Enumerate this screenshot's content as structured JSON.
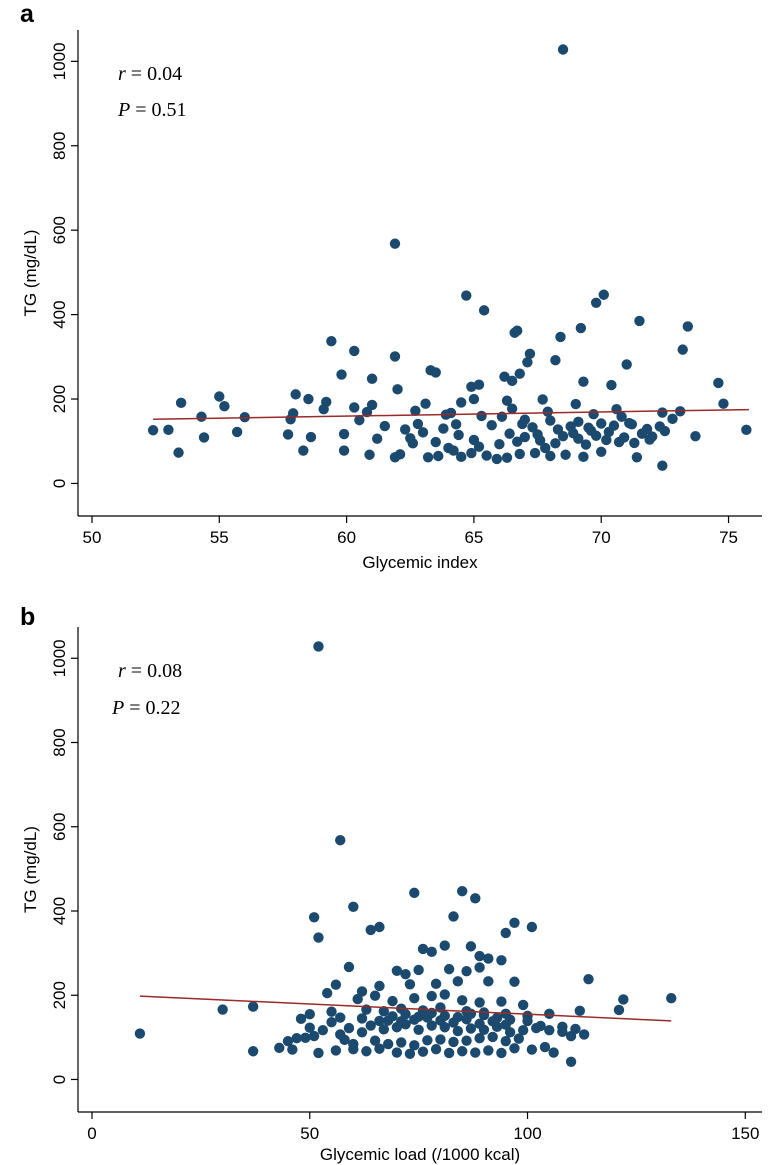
{
  "chart_data": [
    {
      "type": "scatter",
      "panel_label": "a",
      "xlabel": "Glycemic index",
      "ylabel": "TG (mg/dL)",
      "xlim": [
        50,
        76
      ],
      "ylim": [
        -25,
        1060
      ],
      "x_ticks": [
        50,
        55,
        60,
        65,
        70,
        75
      ],
      "y_ticks": [
        0,
        200,
        400,
        600,
        800,
        1000
      ],
      "annotations": {
        "r_symbol": "r",
        "r_value": " = 0.04",
        "p_symbol": "P",
        "p_value": " = 0.51"
      },
      "fit_line": {
        "x": [
          52.4,
          75.8
        ],
        "y": [
          152,
          175
        ]
      },
      "marker_color": "#1b4a6e",
      "fit_color": "#9b2a2a",
      "points": [
        [
          68.5,
          1028
        ],
        [
          61.9,
          568
        ],
        [
          64.7,
          445
        ],
        [
          65.4,
          410
        ],
        [
          70.1,
          447
        ],
        [
          69.8,
          428
        ],
        [
          71.5,
          385
        ],
        [
          73.4,
          372
        ],
        [
          69.2,
          368
        ],
        [
          66.7,
          362
        ],
        [
          66.6,
          357
        ],
        [
          68.4,
          347
        ],
        [
          59.4,
          337
        ],
        [
          60.3,
          314
        ],
        [
          73.2,
          317
        ],
        [
          67.2,
          307
        ],
        [
          61.9,
          301
        ],
        [
          68.2,
          292
        ],
        [
          67.1,
          287
        ],
        [
          71.0,
          282
        ],
        [
          63.3,
          268
        ],
        [
          63.5,
          263
        ],
        [
          66.8,
          260
        ],
        [
          59.8,
          258
        ],
        [
          66.2,
          253
        ],
        [
          61.0,
          248
        ],
        [
          66.5,
          243
        ],
        [
          74.6,
          238
        ],
        [
          69.3,
          241
        ],
        [
          65.2,
          234
        ],
        [
          64.9,
          229
        ],
        [
          70.4,
          233
        ],
        [
          62.0,
          223
        ],
        [
          55.0,
          206
        ],
        [
          58.0,
          211
        ],
        [
          59.2,
          193
        ],
        [
          53.5,
          191
        ],
        [
          58.5,
          200
        ],
        [
          60.3,
          180
        ],
        [
          61.0,
          186
        ],
        [
          63.1,
          189
        ],
        [
          64.5,
          192
        ],
        [
          65.0,
          200
        ],
        [
          66.3,
          196
        ],
        [
          67.7,
          199
        ],
        [
          69.0,
          188
        ],
        [
          70.6,
          176
        ],
        [
          72.4,
          168
        ],
        [
          73.1,
          171
        ],
        [
          74.8,
          189
        ],
        [
          55.2,
          183
        ],
        [
          54.3,
          158
        ],
        [
          56.0,
          157
        ],
        [
          57.9,
          166
        ],
        [
          59.1,
          176
        ],
        [
          60.8,
          169
        ],
        [
          62.7,
          172
        ],
        [
          63.9,
          163
        ],
        [
          65.3,
          160
        ],
        [
          66.1,
          158
        ],
        [
          67.0,
          151
        ],
        [
          68.0,
          149
        ],
        [
          69.1,
          146
        ],
        [
          70.0,
          142
        ],
        [
          71.2,
          140
        ],
        [
          72.8,
          153
        ],
        [
          52.4,
          126
        ],
        [
          53.0,
          127
        ],
        [
          54.4,
          109
        ],
        [
          55.7,
          122
        ],
        [
          57.7,
          116
        ],
        [
          58.6,
          110
        ],
        [
          59.9,
          117
        ],
        [
          61.2,
          106
        ],
        [
          62.5,
          107
        ],
        [
          63.0,
          121
        ],
        [
          64.4,
          115
        ],
        [
          65.0,
          103
        ],
        [
          66.4,
          118
        ],
        [
          67.5,
          116
        ],
        [
          68.9,
          119
        ],
        [
          69.6,
          125
        ],
        [
          70.3,
          122
        ],
        [
          71.6,
          118
        ],
        [
          72.5,
          124
        ],
        [
          73.7,
          112
        ],
        [
          75.7,
          127
        ],
        [
          53.4,
          73
        ],
        [
          58.3,
          78
        ],
        [
          59.9,
          78
        ],
        [
          60.9,
          68
        ],
        [
          62.1,
          69
        ],
        [
          63.2,
          62
        ],
        [
          63.6,
          65
        ],
        [
          64.2,
          78
        ],
        [
          64.9,
          72
        ],
        [
          65.5,
          66
        ],
        [
          66.3,
          61
        ],
        [
          66.8,
          70
        ],
        [
          67.4,
          72
        ],
        [
          68.0,
          65
        ],
        [
          68.6,
          68
        ],
        [
          69.3,
          63
        ],
        [
          70.0,
          75
        ],
        [
          71.4,
          62
        ],
        [
          72.4,
          42
        ],
        [
          61.9,
          62
        ],
        [
          64.5,
          63
        ],
        [
          65.9,
          58
        ],
        [
          67.8,
          84
        ],
        [
          68.2,
          95
        ],
        [
          69.4,
          92
        ],
        [
          70.7,
          98
        ],
        [
          71.9,
          104
        ],
        [
          62.6,
          95
        ],
        [
          63.5,
          98
        ],
        [
          64.0,
          84
        ],
        [
          65.2,
          87
        ],
        [
          66.0,
          93
        ],
        [
          66.7,
          99
        ],
        [
          67.0,
          110
        ],
        [
          67.6,
          102
        ],
        [
          68.5,
          112
        ],
        [
          69.1,
          106
        ],
        [
          69.8,
          113
        ],
        [
          70.2,
          103
        ],
        [
          70.9,
          109
        ],
        [
          71.3,
          96
        ],
        [
          72.0,
          111
        ],
        [
          63.8,
          130
        ],
        [
          64.3,
          140
        ],
        [
          65.7,
          138
        ],
        [
          66.9,
          141
        ],
        [
          67.3,
          133
        ],
        [
          68.3,
          128
        ],
        [
          68.8,
          135
        ],
        [
          69.5,
          132
        ],
        [
          70.5,
          137
        ],
        [
          71.1,
          143
        ],
        [
          71.8,
          129
        ],
        [
          72.3,
          135
        ],
        [
          62.8,
          141
        ],
        [
          60.5,
          150
        ],
        [
          61.5,
          136
        ],
        [
          62.3,
          128
        ],
        [
          57.8,
          152
        ],
        [
          66.5,
          177
        ],
        [
          67.9,
          170
        ],
        [
          69.7,
          164
        ],
        [
          70.8,
          158
        ],
        [
          64.1,
          167
        ]
      ]
    },
    {
      "type": "scatter",
      "panel_label": "b",
      "xlabel": "Glycemic load (/1000 kcal)",
      "ylabel": "TG (mg/dL)",
      "xlim": [
        0,
        152
      ],
      "ylim": [
        -25,
        1060
      ],
      "x_ticks": [
        0,
        50,
        100,
        150
      ],
      "y_ticks": [
        0,
        200,
        400,
        600,
        800,
        1000
      ],
      "annotations": {
        "r_symbol": "r",
        "r_value": " = 0.08",
        "p_symbol": "P",
        "p_value": " = 0.22"
      },
      "fit_line": {
        "x": [
          11,
          133
        ],
        "y": [
          198,
          139
        ]
      },
      "marker_color": "#1b4a6e",
      "fit_color": "#9b2a2a",
      "points": [
        [
          52,
          1028
        ],
        [
          57,
          568
        ],
        [
          74,
          443
        ],
        [
          85,
          447
        ],
        [
          88,
          430
        ],
        [
          83,
          387
        ],
        [
          51,
          385
        ],
        [
          60,
          410
        ],
        [
          52,
          337
        ],
        [
          97,
          372
        ],
        [
          101,
          362
        ],
        [
          95,
          348
        ],
        [
          64,
          355
        ],
        [
          66,
          362
        ],
        [
          76,
          310
        ],
        [
          78,
          303
        ],
        [
          81,
          318
        ],
        [
          87,
          316
        ],
        [
          89,
          293
        ],
        [
          91,
          287
        ],
        [
          94,
          283
        ],
        [
          59,
          267
        ],
        [
          70,
          258
        ],
        [
          72,
          250
        ],
        [
          75,
          260
        ],
        [
          82,
          262
        ],
        [
          86,
          257
        ],
        [
          89,
          266
        ],
        [
          114,
          238
        ],
        [
          54,
          205
        ],
        [
          62,
          209
        ],
        [
          66,
          222
        ],
        [
          73,
          226
        ],
        [
          79,
          227
        ],
        [
          84,
          233
        ],
        [
          91,
          233
        ],
        [
          97,
          232
        ],
        [
          56,
          225
        ],
        [
          61,
          191
        ],
        [
          65,
          199
        ],
        [
          69,
          186
        ],
        [
          74,
          193
        ],
        [
          78,
          198
        ],
        [
          81,
          202
        ],
        [
          85,
          188
        ],
        [
          89,
          183
        ],
        [
          94,
          185
        ],
        [
          99,
          177
        ],
        [
          122,
          190
        ],
        [
          133,
          193
        ],
        [
          30,
          166
        ],
        [
          37,
          173
        ],
        [
          48,
          144
        ],
        [
          55,
          161
        ],
        [
          63,
          166
        ],
        [
          67,
          162
        ],
        [
          71,
          168
        ],
        [
          76,
          164
        ],
        [
          80,
          171
        ],
        [
          86,
          162
        ],
        [
          90,
          159
        ],
        [
          95,
          156
        ],
        [
          100,
          151
        ],
        [
          105,
          156
        ],
        [
          112,
          163
        ],
        [
          121,
          165
        ],
        [
          11,
          109
        ],
        [
          49,
          99
        ],
        [
          51,
          103
        ],
        [
          53,
          117
        ],
        [
          57,
          107
        ],
        [
          59,
          122
        ],
        [
          62,
          112
        ],
        [
          64,
          128
        ],
        [
          67,
          119
        ],
        [
          70,
          124
        ],
        [
          72,
          131
        ],
        [
          75,
          118
        ],
        [
          78,
          128
        ],
        [
          81,
          124
        ],
        [
          84,
          115
        ],
        [
          87,
          121
        ],
        [
          90,
          118
        ],
        [
          93,
          125
        ],
        [
          96,
          112
        ],
        [
          99,
          117
        ],
        [
          102,
          122
        ],
        [
          105,
          117
        ],
        [
          108,
          113
        ],
        [
          110,
          103
        ],
        [
          113,
          107
        ],
        [
          37,
          67
        ],
        [
          46,
          71
        ],
        [
          52,
          63
        ],
        [
          56,
          69
        ],
        [
          60,
          72
        ],
        [
          63,
          67
        ],
        [
          66,
          73
        ],
        [
          70,
          64
        ],
        [
          73,
          61
        ],
        [
          76,
          66
        ],
        [
          79,
          72
        ],
        [
          82,
          63
        ],
        [
          85,
          67
        ],
        [
          88,
          64
        ],
        [
          91,
          69
        ],
        [
          94,
          63
        ],
        [
          97,
          74
        ],
        [
          101,
          71
        ],
        [
          104,
          77
        ],
        [
          106,
          64
        ],
        [
          110,
          42
        ],
        [
          68,
          84
        ],
        [
          71,
          88
        ],
        [
          74,
          81
        ],
        [
          77,
          93
        ],
        [
          80,
          95
        ],
        [
          83,
          89
        ],
        [
          86,
          92
        ],
        [
          89,
          98
        ],
        [
          92,
          101
        ],
        [
          95,
          91
        ],
        [
          98,
          97
        ],
        [
          58,
          94
        ],
        [
          60,
          84
        ],
        [
          65,
          92
        ],
        [
          68,
          140
        ],
        [
          71,
          138
        ],
        [
          74,
          142
        ],
        [
          77,
          147
        ],
        [
          80,
          140
        ],
        [
          83,
          135
        ],
        [
          86,
          143
        ],
        [
          89,
          132
        ],
        [
          92,
          138
        ],
        [
          95,
          130
        ],
        [
          66,
          139
        ],
        [
          69,
          150
        ],
        [
          72,
          155
        ],
        [
          75,
          149
        ],
        [
          78,
          158
        ],
        [
          81,
          151
        ],
        [
          84,
          148
        ],
        [
          87,
          156
        ],
        [
          90,
          153
        ],
        [
          93,
          146
        ],
        [
          96,
          142
        ],
        [
          100,
          139
        ],
        [
          103,
          127
        ],
        [
          108,
          125
        ],
        [
          111,
          120
        ],
        [
          50,
          123
        ],
        [
          55,
          136
        ],
        [
          57,
          147
        ],
        [
          62,
          145
        ],
        [
          47,
          98
        ],
        [
          50,
          155
        ],
        [
          45,
          91
        ],
        [
          43,
          75
        ]
      ]
    }
  ]
}
